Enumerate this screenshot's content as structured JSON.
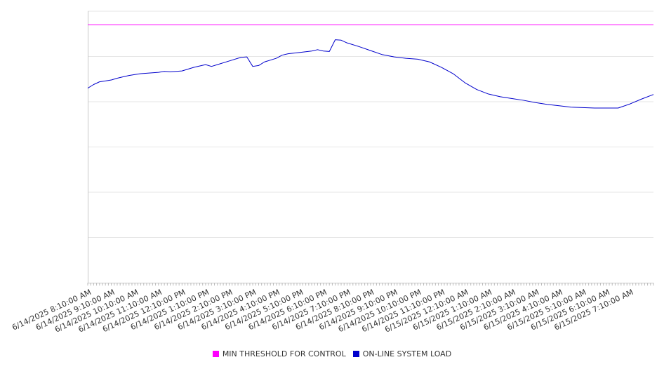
{
  "chart_data": {
    "type": "line",
    "title": "",
    "xlabel": "",
    "ylabel": "",
    "x_tick_labels": [
      "6/14/2025 8:10:00 AM",
      "6/14/2025 9:10:00 AM",
      "6/14/2025 10:10:00 AM",
      "6/14/2025 11:10:00 AM",
      "6/14/2025 12:10:00 PM",
      "6/14/2025 1:10:00 PM",
      "6/14/2025 2:10:00 PM",
      "6/14/2025 3:10:00 PM",
      "6/14/2025 4:10:00 PM",
      "6/14/2025 5:10:00 PM",
      "6/14/2025 6:10:00 PM",
      "6/14/2025 7:10:00 PM",
      "6/14/2025 8:10:00 PM",
      "6/14/2025 9:10:00 PM",
      "6/14/2025 10:10:00 PM",
      "6/14/2025 11:10:00 PM",
      "6/15/2025 12:10:00 AM",
      "6/15/2025 1:10:00 AM",
      "6/15/2025 2:10:00 AM",
      "6/15/2025 3:10:00 AM",
      "6/15/2025 4:10:00 AM",
      "6/15/2025 5:10:00 AM",
      "6/15/2025 6:10:00 AM",
      "6/15/2025 7:10:00 AM"
    ],
    "x_range_hours": [
      0,
      24
    ],
    "y_range": [
      0,
      6
    ],
    "y_tick_labels_visible": false,
    "grid": "horizontal",
    "legend_placement": "bottom-center",
    "series": [
      {
        "name": "MIN THRESHOLD FOR CONTROL",
        "color": "#ff00ff",
        "constant_value": 5.7
      },
      {
        "name": "ON-LINE SYSTEM LOAD",
        "color": "#0000cc",
        "points": [
          [
            0.0,
            4.3
          ],
          [
            0.25,
            4.38
          ],
          [
            0.5,
            4.44
          ],
          [
            0.75,
            4.46
          ],
          [
            1.0,
            4.48
          ],
          [
            1.25,
            4.52
          ],
          [
            1.5,
            4.55
          ],
          [
            1.75,
            4.58
          ],
          [
            2.0,
            4.6
          ],
          [
            2.25,
            4.62
          ],
          [
            2.5,
            4.63
          ],
          [
            2.75,
            4.64
          ],
          [
            3.0,
            4.65
          ],
          [
            3.25,
            4.67
          ],
          [
            3.5,
            4.66
          ],
          [
            4.0,
            4.68
          ],
          [
            4.5,
            4.76
          ],
          [
            5.0,
            4.82
          ],
          [
            5.25,
            4.78
          ],
          [
            5.5,
            4.82
          ],
          [
            6.0,
            4.9
          ],
          [
            6.5,
            4.98
          ],
          [
            6.75,
            4.99
          ],
          [
            7.0,
            4.78
          ],
          [
            7.25,
            4.8
          ],
          [
            7.5,
            4.88
          ],
          [
            8.0,
            4.96
          ],
          [
            8.25,
            5.03
          ],
          [
            8.5,
            5.06
          ],
          [
            9.0,
            5.09
          ],
          [
            9.5,
            5.12
          ],
          [
            9.75,
            5.15
          ],
          [
            10.0,
            5.12
          ],
          [
            10.25,
            5.11
          ],
          [
            10.5,
            5.37
          ],
          [
            10.75,
            5.36
          ],
          [
            11.0,
            5.3
          ],
          [
            11.5,
            5.22
          ],
          [
            12.0,
            5.13
          ],
          [
            12.5,
            5.04
          ],
          [
            13.0,
            4.99
          ],
          [
            13.5,
            4.96
          ],
          [
            14.0,
            4.94
          ],
          [
            14.5,
            4.88
          ],
          [
            15.0,
            4.76
          ],
          [
            15.5,
            4.62
          ],
          [
            16.0,
            4.42
          ],
          [
            16.5,
            4.27
          ],
          [
            17.0,
            4.17
          ],
          [
            17.5,
            4.11
          ],
          [
            18.0,
            4.07
          ],
          [
            18.5,
            4.03
          ],
          [
            19.0,
            3.98
          ],
          [
            19.5,
            3.94
          ],
          [
            20.0,
            3.91
          ],
          [
            20.5,
            3.88
          ],
          [
            21.0,
            3.87
          ],
          [
            21.5,
            3.86
          ],
          [
            22.0,
            3.86
          ],
          [
            22.5,
            3.86
          ],
          [
            23.0,
            3.95
          ],
          [
            23.5,
            4.06
          ],
          [
            24.0,
            4.16
          ]
        ]
      }
    ]
  }
}
